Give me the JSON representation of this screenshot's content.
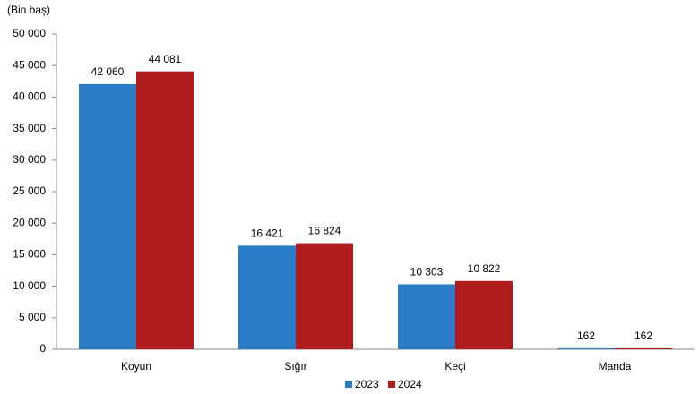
{
  "chart_data": {
    "type": "bar",
    "y_label": "(Bin baş)",
    "categories": [
      "Koyun",
      "Sığır",
      "Keçi",
      "Manda"
    ],
    "series": [
      {
        "name": "2023",
        "color": "#2a7cc7",
        "values": [
          42060,
          16421,
          10303,
          162
        ],
        "value_labels": [
          "42 060",
          "16 421",
          "10 303",
          "162"
        ]
      },
      {
        "name": "2024",
        "color": "#b01c1c",
        "values": [
          44081,
          16824,
          10822,
          162
        ],
        "value_labels": [
          "44 081",
          "16 824",
          "10 822",
          "162"
        ]
      }
    ],
    "ylim": [
      0,
      50000
    ],
    "yticks": [
      0,
      {
        "value": 5000,
        "label": "5 000"
      },
      {
        "value": 10000,
        "label": "10 000"
      },
      {
        "value": 15000,
        "label": "15 000"
      },
      {
        "value": 20000,
        "label": "20 000"
      },
      {
        "value": 25000,
        "label": "25 000"
      },
      {
        "value": 30000,
        "label": "30 000"
      },
      {
        "value": 35000,
        "label": "35 000"
      },
      {
        "value": 40000,
        "label": "40 000"
      },
      {
        "value": 45000,
        "label": "45 000"
      },
      {
        "value": 50000,
        "label": "50 000"
      }
    ],
    "grid": false,
    "legend": "bottom"
  }
}
